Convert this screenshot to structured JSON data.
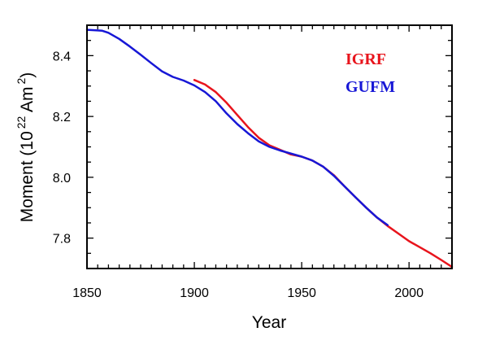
{
  "chart_data": {
    "type": "line",
    "xlabel": "Year",
    "ylabel": {
      "prefix": "Moment (10",
      "exponent1": "22",
      "middle": " Am",
      "exponent2": "2",
      "suffix": ")"
    },
    "xlim": [
      1850,
      2020
    ],
    "ylim": [
      7.7,
      8.5
    ],
    "xticks": [
      1850,
      1900,
      1950,
      2000
    ],
    "yticks": [
      7.8,
      8.0,
      8.2,
      8.4
    ],
    "ytick_labels": [
      "7.8",
      "8.0",
      "8.2",
      "8.4"
    ],
    "legend_placement": "top-right",
    "series": [
      {
        "name": "IGRF",
        "color": "#e8141c",
        "x": [
          1900,
          1905,
          1910,
          1915,
          1920,
          1925,
          1930,
          1935,
          1940,
          1945,
          1950,
          1955,
          1960,
          1965,
          1970,
          1975,
          1980,
          1985,
          1990,
          1995,
          2000,
          2005,
          2010,
          2015,
          2020
        ],
        "y": [
          8.32,
          8.305,
          8.28,
          8.245,
          8.205,
          8.165,
          8.13,
          8.105,
          8.09,
          8.075,
          8.068,
          8.055,
          8.035,
          8.007,
          7.97,
          7.935,
          7.9,
          7.868,
          7.84,
          7.815,
          7.79,
          7.77,
          7.75,
          7.728,
          7.705
        ]
      },
      {
        "name": "GUFM",
        "color": "#1717d6",
        "x": [
          1850,
          1855,
          1857,
          1860,
          1865,
          1870,
          1875,
          1880,
          1885,
          1890,
          1895,
          1900,
          1905,
          1910,
          1915,
          1920,
          1925,
          1930,
          1935,
          1940,
          1945,
          1950,
          1955,
          1960,
          1965,
          1970,
          1975,
          1980,
          1985,
          1990
        ],
        "y": [
          8.485,
          8.483,
          8.482,
          8.475,
          8.455,
          8.43,
          8.403,
          8.375,
          8.348,
          8.33,
          8.318,
          8.302,
          8.28,
          8.25,
          8.21,
          8.175,
          8.145,
          8.118,
          8.1,
          8.088,
          8.078,
          8.068,
          8.055,
          8.035,
          8.005,
          7.97,
          7.935,
          7.9,
          7.868,
          7.843
        ]
      }
    ]
  }
}
